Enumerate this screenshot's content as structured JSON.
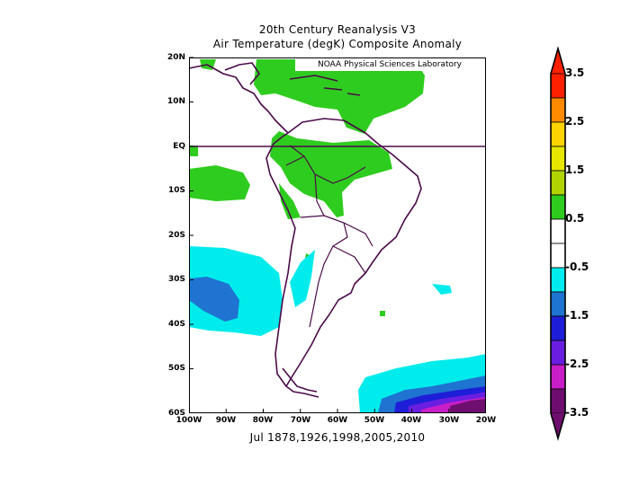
{
  "title_line1": "20th Century Reanalysis V3",
  "title_line2": "Air Temperature (degK) Composite Anomaly",
  "subtitle": "Jul 1878,1926,1998,2005,2010",
  "credit": "NOAA Physical Sciences Laboratory",
  "y_ticks": [
    "20N",
    "10N",
    "EQ",
    "10S",
    "20S",
    "30S",
    "40S",
    "50S",
    "60S"
  ],
  "x_ticks": [
    "100W",
    "90W",
    "80W",
    "70W",
    "60W",
    "50W",
    "40W",
    "30W",
    "20W"
  ],
  "colorbar": {
    "labels": [
      "3.5",
      "2.5",
      "1.5",
      "0.5",
      "-0.5",
      "-1.5",
      "-2.5",
      "-3.5"
    ],
    "colors": [
      "#ff2000",
      "#ff8a00",
      "#ffd400",
      "#e6e600",
      "#b0d400",
      "#2ecc1e",
      "#ffffff",
      "#ffffff",
      "#00ecec",
      "#1e74d0",
      "#1e1ed8",
      "#6a1ee0",
      "#c81ec8",
      "#6e0e6e"
    ]
  },
  "map": {
    "lon_range": [
      -100,
      -20
    ],
    "lat_range": [
      -60,
      20
    ],
    "colors": {
      "land_outline": "#4a0b48",
      "positive_anomaly": "#2ecc1e",
      "neg_light": "#00ecec",
      "neg_mid": "#1e74d0",
      "neg_strong": "#1e1ed8",
      "neg_violet": "#6a1ee0",
      "neg_magenta": "#c81ec8",
      "neg_dark": "#6e0e6e"
    }
  }
}
